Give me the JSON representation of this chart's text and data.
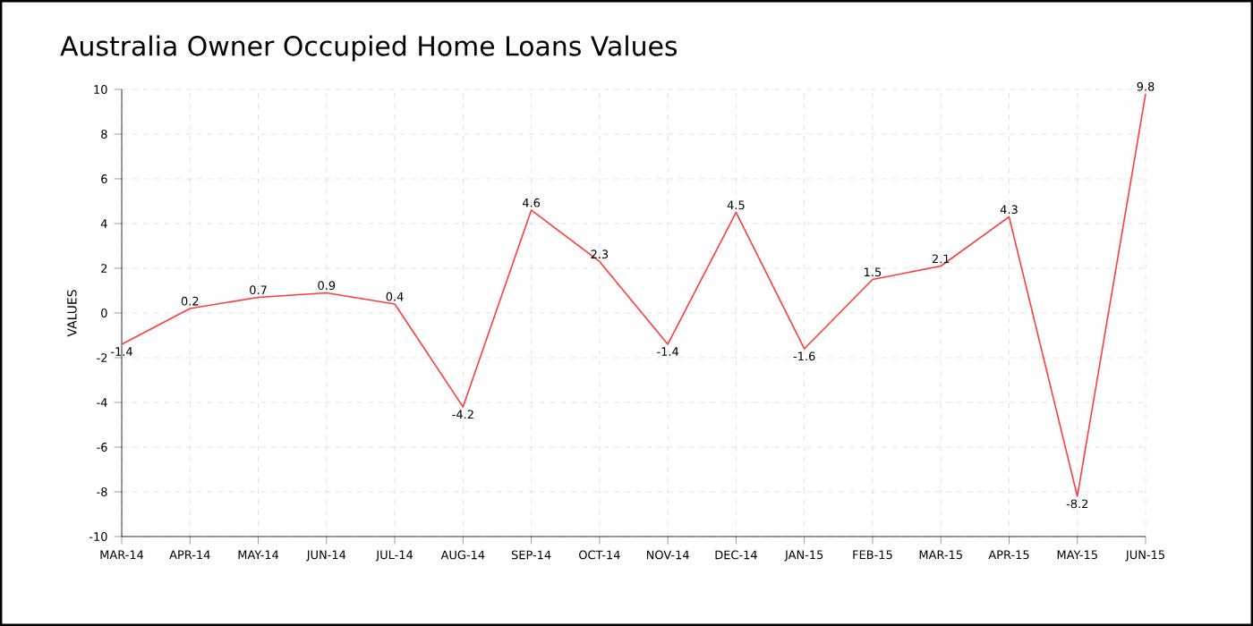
{
  "chart_data": {
    "type": "line",
    "title": "Australia Owner Occupied Home Loans Values",
    "ylabel": "VALUES",
    "categories": [
      "MAR-14",
      "APR-14",
      "MAY-14",
      "JUN-14",
      "JUL-14",
      "AUG-14",
      "SEP-14",
      "OCT-14",
      "NOV-14",
      "DEC-14",
      "JAN-15",
      "FEB-15",
      "MAR-15",
      "APR-15",
      "MAY-15",
      "JUN-15"
    ],
    "values": [
      -1.4,
      0.2,
      0.7,
      0.9,
      0.4,
      -4.2,
      4.6,
      2.3,
      -1.4,
      4.5,
      -1.6,
      1.5,
      2.1,
      4.3,
      -8.2,
      9.8
    ],
    "color": "#ff3b3b",
    "ylim": [
      -10,
      10
    ],
    "yticks": [
      -10,
      -8,
      -6,
      -4,
      -2,
      0,
      2,
      4,
      6,
      8,
      10
    ],
    "grid": true,
    "data_labels": true,
    "marker": "none",
    "line_style": "solid"
  }
}
